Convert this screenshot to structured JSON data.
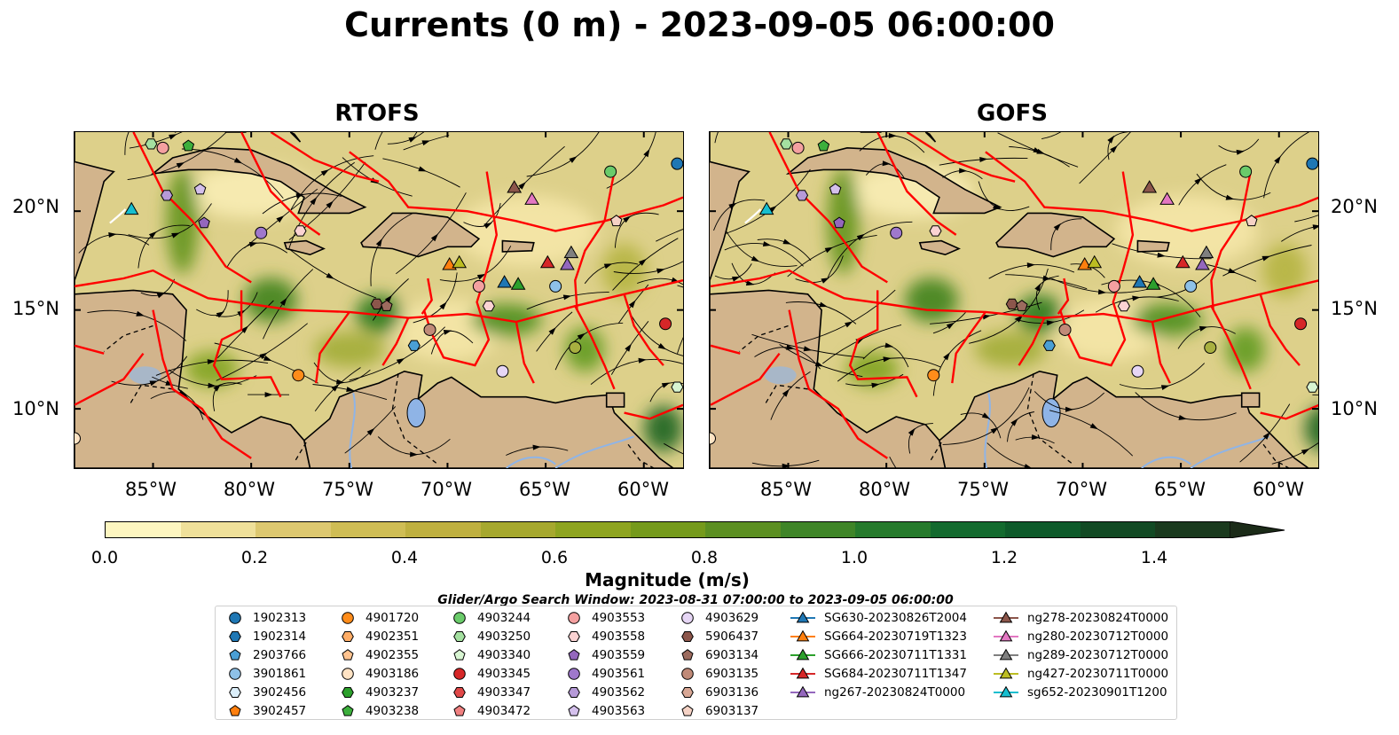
{
  "title": "Currents (0 m) - 2023-09-05 06:00:00",
  "panels": [
    {
      "title": "RTOFS"
    },
    {
      "title": "GOFS"
    }
  ],
  "axes": {
    "x_ticks": [
      "85°W",
      "80°W",
      "75°W",
      "70°W",
      "65°W",
      "60°W"
    ],
    "y_ticks": [
      "20°N",
      "15°N",
      "10°N"
    ],
    "lon_range": [
      -89,
      -58
    ],
    "lat_range": [
      7,
      24
    ]
  },
  "colorbar": {
    "label": "Magnitude (m/s)",
    "ticks": [
      "0.0",
      "0.2",
      "0.4",
      "0.6",
      "0.8",
      "1.0",
      "1.2",
      "1.4"
    ],
    "colors": [
      "#fdf6c0",
      "#efe09a",
      "#ddc870",
      "#cfbd55",
      "#bfb040",
      "#a6a82e",
      "#8ea420",
      "#759a1c",
      "#5c8f22",
      "#3f8528",
      "#267a2c",
      "#136a2e",
      "#0e5a2a",
      "#124a24",
      "#1a3a1e",
      "#1b2b18"
    ]
  },
  "legend": {
    "title": "Glider/Argo Search Window: 2023-08-31 07:00:00 to 2023-09-05 06:00:00",
    "columns": [
      [
        {
          "label": "1902313",
          "marker": "circle",
          "color": "#1f77b4"
        },
        {
          "label": "1902314",
          "marker": "hexagon",
          "color": "#1f77b4"
        },
        {
          "label": "2903766",
          "marker": "pentagon",
          "color": "#4a9fd5"
        },
        {
          "label": "3901861",
          "marker": "circle",
          "color": "#8ec1e8"
        },
        {
          "label": "3902456",
          "marker": "hexagon",
          "color": "#dbeef9"
        },
        {
          "label": "3902457",
          "marker": "pentagon",
          "color": "#ff7f0e"
        }
      ],
      [
        {
          "label": "4901720",
          "marker": "circle",
          "color": "#ff8c1a"
        },
        {
          "label": "4902351",
          "marker": "hexagon",
          "color": "#ffad66"
        },
        {
          "label": "4902355",
          "marker": "pentagon",
          "color": "#ffc38f"
        },
        {
          "label": "4903186",
          "marker": "circle",
          "color": "#ffe3c4"
        },
        {
          "label": "4903237",
          "marker": "hexagon",
          "color": "#2ca02c"
        },
        {
          "label": "4903238",
          "marker": "pentagon",
          "color": "#3caf3c"
        }
      ],
      [
        {
          "label": "4903244",
          "marker": "circle",
          "color": "#6acb6a"
        },
        {
          "label": "4903250",
          "marker": "hexagon",
          "color": "#a4e0a0"
        },
        {
          "label": "4903340",
          "marker": "pentagon",
          "color": "#d8f5d2"
        },
        {
          "label": "4903345",
          "marker": "circle",
          "color": "#d62728"
        },
        {
          "label": "4903347",
          "marker": "hexagon",
          "color": "#e04848"
        },
        {
          "label": "4903472",
          "marker": "pentagon",
          "color": "#f08080"
        }
      ],
      [
        {
          "label": "4903553",
          "marker": "circle",
          "color": "#f4a0a0"
        },
        {
          "label": "4903558",
          "marker": "hexagon",
          "color": "#fbd3d3"
        },
        {
          "label": "4903559",
          "marker": "pentagon",
          "color": "#9467bd"
        },
        {
          "label": "4903561",
          "marker": "circle",
          "color": "#9f78cc"
        },
        {
          "label": "4903562",
          "marker": "hexagon",
          "color": "#b69ad8"
        },
        {
          "label": "4903563",
          "marker": "pentagon",
          "color": "#d4c0ec"
        }
      ],
      [
        {
          "label": "4903629",
          "marker": "circle",
          "color": "#e6d6f5"
        },
        {
          "label": "5906437",
          "marker": "hexagon",
          "color": "#8c564b"
        },
        {
          "label": "6903134",
          "marker": "pentagon",
          "color": "#9c6b5e"
        },
        {
          "label": "6903135",
          "marker": "circle",
          "color": "#c08a78"
        },
        {
          "label": "6903136",
          "marker": "hexagon",
          "color": "#d9a896"
        },
        {
          "label": "6903137",
          "marker": "pentagon",
          "color": "#f5d2c5"
        }
      ],
      [
        {
          "label": "SG630-20230826T2004",
          "marker": "triangle",
          "color": "#1f77b4"
        },
        {
          "label": "SG664-20230719T1323",
          "marker": "triangle",
          "color": "#ff7f0e"
        },
        {
          "label": "SG666-20230711T1331",
          "marker": "triangle",
          "color": "#2ca02c"
        },
        {
          "label": "SG684-20230711T1347",
          "marker": "triangle",
          "color": "#d62728"
        },
        {
          "label": "ng267-20230824T0000",
          "marker": "triangle",
          "color": "#9467bd"
        }
      ],
      [
        {
          "label": "ng278-20230824T0000",
          "marker": "triangle",
          "color": "#8c564b"
        },
        {
          "label": "ng280-20230712T0000",
          "marker": "triangle",
          "color": "#e377c2"
        },
        {
          "label": "ng289-20230712T0000",
          "marker": "triangle",
          "color": "#7f7f7f"
        },
        {
          "label": "ng427-20230711T0000",
          "marker": "triangle",
          "color": "#bcbd22"
        },
        {
          "label": "sg652-20230901T1200",
          "marker": "triangle",
          "color": "#17becf"
        }
      ]
    ]
  },
  "colors": {
    "land": "#d2b48c",
    "eez_boundary": "#ff0000",
    "streamline": "#000000",
    "river": "#8fb4e6"
  }
}
